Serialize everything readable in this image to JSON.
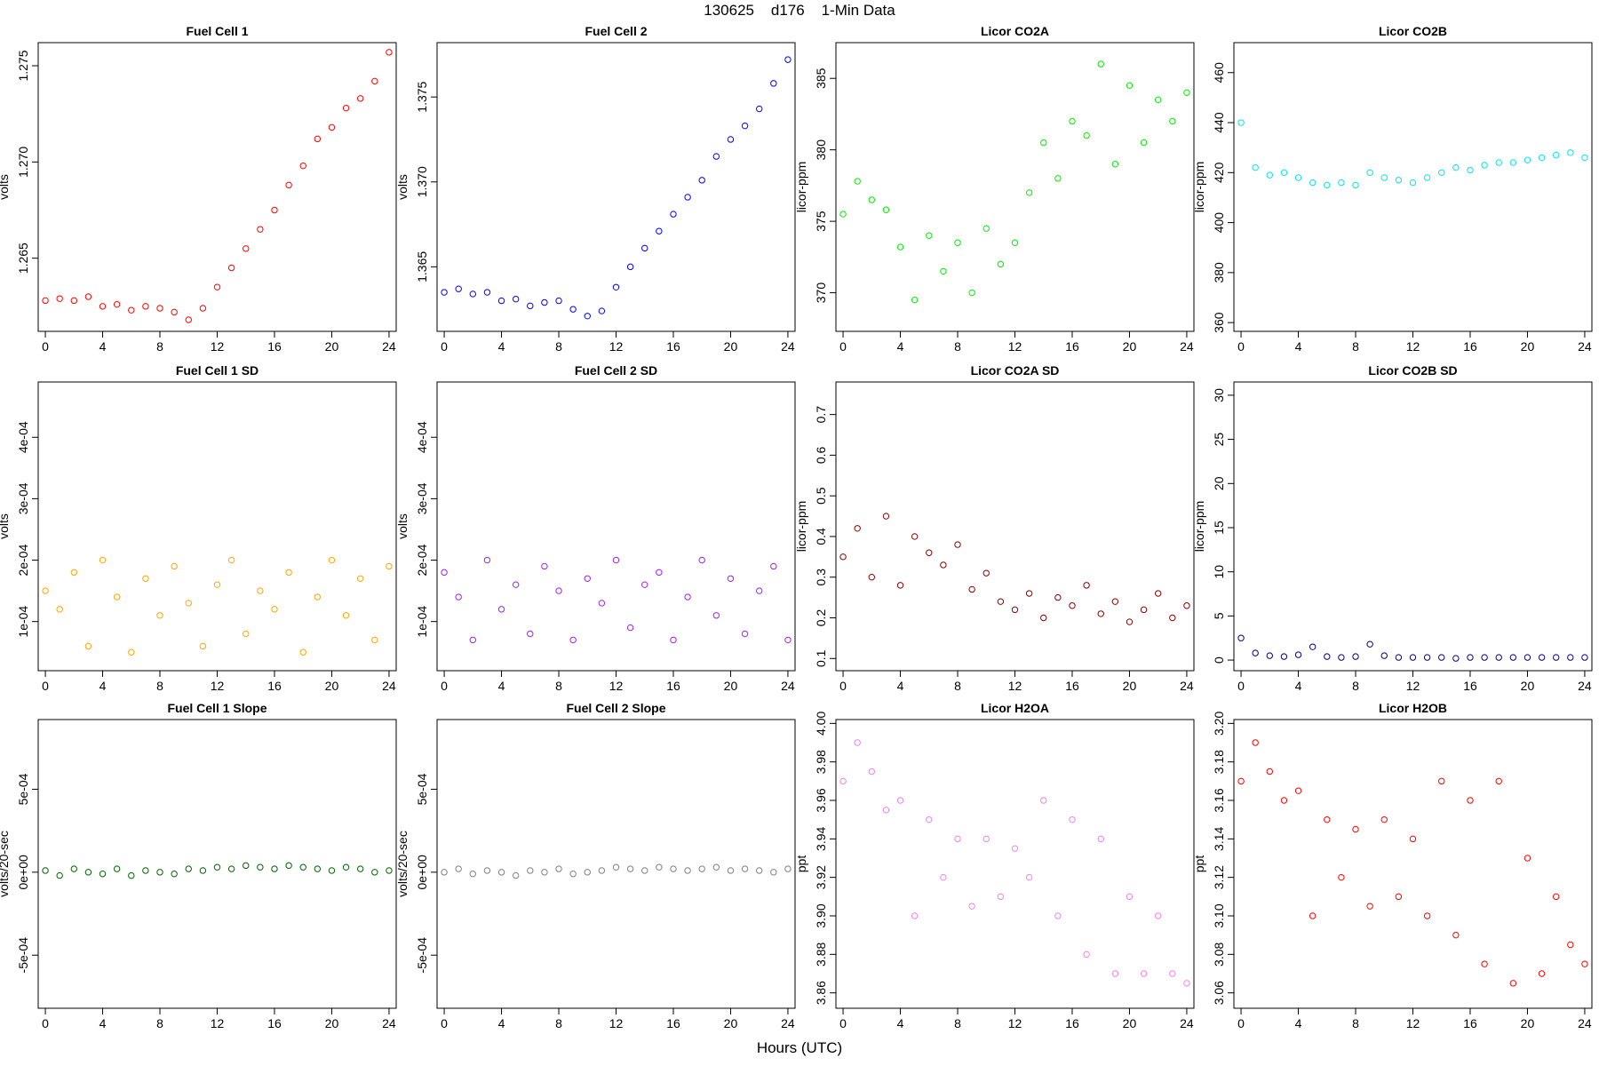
{
  "figure": {
    "title": "130625    d176    1-Min Data",
    "xlabel": "Hours (UTC)"
  },
  "chart_data": [
    {
      "type": "scatter",
      "title": "Fuel Cell 1",
      "ylabel": "volts",
      "color": "#ff0000",
      "xlim": [
        -0.5,
        24.5
      ],
      "ylim": [
        1.2612,
        1.2762
      ],
      "xticks": [
        0,
        4,
        8,
        12,
        16,
        20,
        24
      ],
      "yticks": [
        1.265,
        1.27,
        1.275
      ],
      "ytick_labels": [
        "1.265",
        "1.270",
        "1.275"
      ],
      "x": [
        0,
        1,
        2,
        3,
        4,
        5,
        6,
        7,
        8,
        9,
        10,
        11,
        12,
        13,
        14,
        15,
        16,
        17,
        18,
        19,
        20,
        21,
        22,
        23,
        24
      ],
      "y": [
        1.2628,
        1.2629,
        1.2628,
        1.263,
        1.2625,
        1.2626,
        1.2623,
        1.2625,
        1.2624,
        1.2622,
        1.2618,
        1.2624,
        1.2635,
        1.2645,
        1.2655,
        1.2665,
        1.2675,
        1.2688,
        1.2698,
        1.2712,
        1.2718,
        1.2728,
        1.2733,
        1.2742,
        1.2757
      ]
    },
    {
      "type": "scatter",
      "title": "Fuel Cell 2",
      "ylabel": "volts",
      "color": "#0000ff",
      "xlim": [
        -0.5,
        24.5
      ],
      "ylim": [
        1.3612,
        1.3782
      ],
      "xticks": [
        0,
        4,
        8,
        12,
        16,
        20,
        24
      ],
      "yticks": [
        1.365,
        1.37,
        1.375
      ],
      "ytick_labels": [
        "1.365",
        "1.370",
        "1.375"
      ],
      "x": [
        0,
        1,
        2,
        3,
        4,
        5,
        6,
        7,
        8,
        9,
        10,
        11,
        12,
        13,
        14,
        15,
        16,
        17,
        18,
        19,
        20,
        21,
        22,
        23,
        24
      ],
      "y": [
        1.3635,
        1.3637,
        1.3634,
        1.3635,
        1.363,
        1.3631,
        1.3627,
        1.3629,
        1.363,
        1.3625,
        1.3621,
        1.3624,
        1.3638,
        1.365,
        1.3661,
        1.3671,
        1.3681,
        1.3691,
        1.3701,
        1.3715,
        1.3725,
        1.3733,
        1.3743,
        1.3758,
        1.3772
      ]
    },
    {
      "type": "scatter",
      "title": "Licor CO2A",
      "ylabel": "licor-ppm",
      "color": "#00ee00",
      "xlim": [
        -0.5,
        24.5
      ],
      "ylim": [
        367.3,
        387.5
      ],
      "xticks": [
        0,
        4,
        8,
        12,
        16,
        20,
        24
      ],
      "yticks": [
        370,
        375,
        380,
        385
      ],
      "ytick_labels": [
        "370",
        "375",
        "380",
        "385"
      ],
      "x": [
        0,
        1,
        2,
        3,
        4,
        5,
        6,
        7,
        8,
        9,
        10,
        11,
        12,
        13,
        14,
        15,
        16,
        17,
        18,
        19,
        20,
        21,
        22,
        23,
        24
      ],
      "y": [
        375.5,
        377.8,
        376.5,
        375.8,
        373.2,
        369.5,
        374.0,
        371.5,
        373.5,
        370.0,
        374.5,
        372.0,
        373.5,
        377.0,
        380.5,
        378.0,
        382.0,
        381.0,
        386.0,
        379.0,
        384.5,
        380.5,
        383.5,
        382.0,
        384.0
      ]
    },
    {
      "type": "scatter",
      "title": "Licor CO2B",
      "ylabel": "licor-ppm",
      "color": "#00e5ee",
      "xlim": [
        -0.5,
        24.5
      ],
      "ylim": [
        356.5,
        472
      ],
      "xticks": [
        0,
        4,
        8,
        12,
        16,
        20,
        24
      ],
      "yticks": [
        360,
        380,
        400,
        420,
        440,
        460
      ],
      "ytick_labels": [
        "360",
        "380",
        "400",
        "420",
        "440",
        "460"
      ],
      "x": [
        0,
        1,
        2,
        3,
        4,
        5,
        6,
        7,
        8,
        9,
        10,
        11,
        12,
        13,
        14,
        15,
        16,
        17,
        18,
        19,
        20,
        21,
        22,
        23,
        24
      ],
      "y": [
        440,
        422,
        419,
        420,
        418,
        416,
        415,
        416,
        415,
        420,
        418,
        417,
        416,
        418,
        420,
        422,
        421,
        423,
        424,
        424,
        425,
        426,
        427,
        428,
        426
      ]
    },
    {
      "type": "scatter",
      "title": "Fuel Cell 1 SD",
      "ylabel": "volts",
      "color": "#ffa500",
      "xlim": [
        -0.5,
        24.5
      ],
      "ylim": [
        2e-05,
        0.00049
      ],
      "xticks": [
        0,
        4,
        8,
        12,
        16,
        20,
        24
      ],
      "yticks": [
        0.0001,
        0.0002,
        0.0003,
        0.0004
      ],
      "ytick_labels": [
        "1e-04",
        "2e-04",
        "3e-04",
        "4e-04"
      ],
      "x": [
        0,
        1,
        2,
        3,
        4,
        5,
        6,
        7,
        8,
        9,
        10,
        11,
        12,
        13,
        14,
        15,
        16,
        17,
        18,
        19,
        20,
        21,
        22,
        23,
        24
      ],
      "y": [
        0.00015,
        0.00012,
        0.00018,
        6e-05,
        0.0002,
        0.00014,
        5e-05,
        0.00017,
        0.00011,
        0.00019,
        0.00013,
        6e-05,
        0.00016,
        0.0002,
        8e-05,
        0.00015,
        0.00012,
        0.00018,
        5e-05,
        0.00014,
        0.0002,
        0.00011,
        0.00017,
        7e-05,
        0.00019
      ]
    },
    {
      "type": "scatter",
      "title": "Fuel Cell 2 SD",
      "ylabel": "volts",
      "color": "#a020f0",
      "xlim": [
        -0.5,
        24.5
      ],
      "ylim": [
        2e-05,
        0.00049
      ],
      "xticks": [
        0,
        4,
        8,
        12,
        16,
        20,
        24
      ],
      "yticks": [
        0.0001,
        0.0002,
        0.0003,
        0.0004
      ],
      "ytick_labels": [
        "1e-04",
        "2e-04",
        "3e-04",
        "4e-04"
      ],
      "x": [
        0,
        1,
        2,
        3,
        4,
        5,
        6,
        7,
        8,
        9,
        10,
        11,
        12,
        13,
        14,
        15,
        16,
        17,
        18,
        19,
        20,
        21,
        22,
        23,
        24
      ],
      "y": [
        0.00018,
        0.00014,
        7e-05,
        0.0002,
        0.00012,
        0.00016,
        8e-05,
        0.00019,
        0.00015,
        7e-05,
        0.00017,
        0.00013,
        0.0002,
        9e-05,
        0.00016,
        0.00018,
        7e-05,
        0.00014,
        0.0002,
        0.00011,
        0.00017,
        8e-05,
        0.00015,
        0.00019,
        7e-05
      ]
    },
    {
      "type": "scatter",
      "title": "Licor CO2A SD",
      "ylabel": "licor-ppm",
      "color": "#8b0000",
      "xlim": [
        -0.5,
        24.5
      ],
      "ylim": [
        0.07,
        0.78
      ],
      "xticks": [
        0,
        4,
        8,
        12,
        16,
        20,
        24
      ],
      "yticks": [
        0.1,
        0.2,
        0.3,
        0.4,
        0.5,
        0.6,
        0.7
      ],
      "ytick_labels": [
        "0.1",
        "0.2",
        "0.3",
        "0.4",
        "0.5",
        "0.6",
        "0.7"
      ],
      "x": [
        0,
        1,
        2,
        3,
        4,
        5,
        6,
        7,
        8,
        9,
        10,
        11,
        12,
        13,
        14,
        15,
        16,
        17,
        18,
        19,
        20,
        21,
        22,
        23,
        24
      ],
      "y": [
        0.35,
        0.42,
        0.3,
        0.45,
        0.28,
        0.4,
        0.36,
        0.33,
        0.38,
        0.27,
        0.31,
        0.24,
        0.22,
        0.26,
        0.2,
        0.25,
        0.23,
        0.28,
        0.21,
        0.24,
        0.19,
        0.22,
        0.26,
        0.2,
        0.23
      ]
    },
    {
      "type": "scatter",
      "title": "Licor CO2B SD",
      "ylabel": "licor-ppm",
      "color": "#000080",
      "xlim": [
        -0.5,
        24.5
      ],
      "ylim": [
        -1.2,
        31.5
      ],
      "xticks": [
        0,
        4,
        8,
        12,
        16,
        20,
        24
      ],
      "yticks": [
        0,
        5,
        10,
        15,
        20,
        25,
        30
      ],
      "ytick_labels": [
        "0",
        "5",
        "10",
        "15",
        "20",
        "25",
        "30"
      ],
      "x": [
        0,
        1,
        2,
        3,
        4,
        5,
        6,
        7,
        8,
        9,
        10,
        11,
        12,
        13,
        14,
        15,
        16,
        17,
        18,
        19,
        20,
        21,
        22,
        23,
        24
      ],
      "y": [
        2.5,
        0.8,
        0.5,
        0.4,
        0.6,
        1.5,
        0.4,
        0.3,
        0.4,
        1.8,
        0.5,
        0.3,
        0.3,
        0.3,
        0.3,
        0.2,
        0.3,
        0.3,
        0.3,
        0.3,
        0.3,
        0.3,
        0.3,
        0.3,
        0.3
      ]
    },
    {
      "type": "scatter",
      "title": "Fuel Cell 1 Slope",
      "ylabel": "volts/20-sec",
      "color": "#006400",
      "xlim": [
        -0.5,
        24.5
      ],
      "ylim": [
        -0.00082,
        0.00092
      ],
      "xticks": [
        0,
        4,
        8,
        12,
        16,
        20,
        24
      ],
      "yticks": [
        -0.0005,
        0,
        0.0005
      ],
      "ytick_labels": [
        "-5e-04",
        "0e+00",
        "5e-04"
      ],
      "x": [
        0,
        1,
        2,
        3,
        4,
        5,
        6,
        7,
        8,
        9,
        10,
        11,
        12,
        13,
        14,
        15,
        16,
        17,
        18,
        19,
        20,
        21,
        22,
        23,
        24
      ],
      "y": [
        1e-05,
        -2e-05,
        2e-05,
        0,
        -1e-05,
        2e-05,
        -2e-05,
        1e-05,
        0,
        -1e-05,
        2e-05,
        1e-05,
        3e-05,
        2e-05,
        4e-05,
        3e-05,
        2e-05,
        4e-05,
        3e-05,
        2e-05,
        1e-05,
        3e-05,
        2e-05,
        0,
        1e-05
      ]
    },
    {
      "type": "scatter",
      "title": "Fuel Cell 2 Slope",
      "ylabel": "volts/20-sec",
      "color": "#808080",
      "xlim": [
        -0.5,
        24.5
      ],
      "ylim": [
        -0.00082,
        0.00092
      ],
      "xticks": [
        0,
        4,
        8,
        12,
        16,
        20,
        24
      ],
      "yticks": [
        -0.0005,
        0,
        0.0005
      ],
      "ytick_labels": [
        "-5e-04",
        "0e+00",
        "5e-04"
      ],
      "x": [
        0,
        1,
        2,
        3,
        4,
        5,
        6,
        7,
        8,
        9,
        10,
        11,
        12,
        13,
        14,
        15,
        16,
        17,
        18,
        19,
        20,
        21,
        22,
        23,
        24
      ],
      "y": [
        0,
        2e-05,
        -1e-05,
        1e-05,
        0,
        -2e-05,
        1e-05,
        0,
        2e-05,
        -1e-05,
        0,
        1e-05,
        3e-05,
        2e-05,
        1e-05,
        3e-05,
        2e-05,
        1e-05,
        2e-05,
        3e-05,
        1e-05,
        2e-05,
        1e-05,
        0,
        2e-05
      ]
    },
    {
      "type": "scatter",
      "title": "Licor H2OA",
      "ylabel": "ppt",
      "color": "#ee82ee",
      "xlim": [
        -0.5,
        24.5
      ],
      "ylim": [
        3.852,
        4.002
      ],
      "xticks": [
        0,
        4,
        8,
        12,
        16,
        20,
        24
      ],
      "yticks": [
        3.86,
        3.88,
        3.9,
        3.92,
        3.94,
        3.96,
        3.98,
        4.0
      ],
      "ytick_labels": [
        "3.86",
        "3.88",
        "3.90",
        "3.92",
        "3.94",
        "3.96",
        "3.98",
        "4.00"
      ],
      "x": [
        0,
        1,
        2,
        3,
        4,
        5,
        6,
        7,
        8,
        9,
        10,
        11,
        12,
        13,
        14,
        15,
        16,
        17,
        18,
        19,
        20,
        21,
        22,
        23,
        24
      ],
      "y": [
        3.97,
        3.99,
        3.975,
        3.955,
        3.96,
        3.9,
        3.95,
        3.92,
        3.94,
        3.905,
        3.94,
        3.91,
        3.935,
        3.92,
        3.96,
        3.9,
        3.95,
        3.88,
        3.94,
        3.87,
        3.91,
        3.87,
        3.9,
        3.87,
        3.865
      ]
    },
    {
      "type": "scatter",
      "title": "Licor H2OB",
      "ylabel": "ppt",
      "color": "#ff0000",
      "xlim": [
        -0.5,
        24.5
      ],
      "ylim": [
        3.052,
        3.202
      ],
      "xticks": [
        0,
        4,
        8,
        12,
        16,
        20,
        24
      ],
      "yticks": [
        3.06,
        3.08,
        3.1,
        3.12,
        3.14,
        3.16,
        3.18,
        3.2
      ],
      "ytick_labels": [
        "3.06",
        "3.08",
        "3.10",
        "3.12",
        "3.14",
        "3.16",
        "3.18",
        "3.20"
      ],
      "x": [
        0,
        1,
        2,
        3,
        4,
        5,
        6,
        7,
        8,
        9,
        10,
        11,
        12,
        13,
        14,
        15,
        16,
        17,
        18,
        19,
        20,
        21,
        22,
        23,
        24
      ],
      "y": [
        3.17,
        3.19,
        3.175,
        3.16,
        3.165,
        3.1,
        3.15,
        3.12,
        3.145,
        3.105,
        3.15,
        3.11,
        3.14,
        3.1,
        3.17,
        3.09,
        3.16,
        3.075,
        3.17,
        3.065,
        3.13,
        3.07,
        3.11,
        3.085,
        3.075
      ]
    }
  ]
}
